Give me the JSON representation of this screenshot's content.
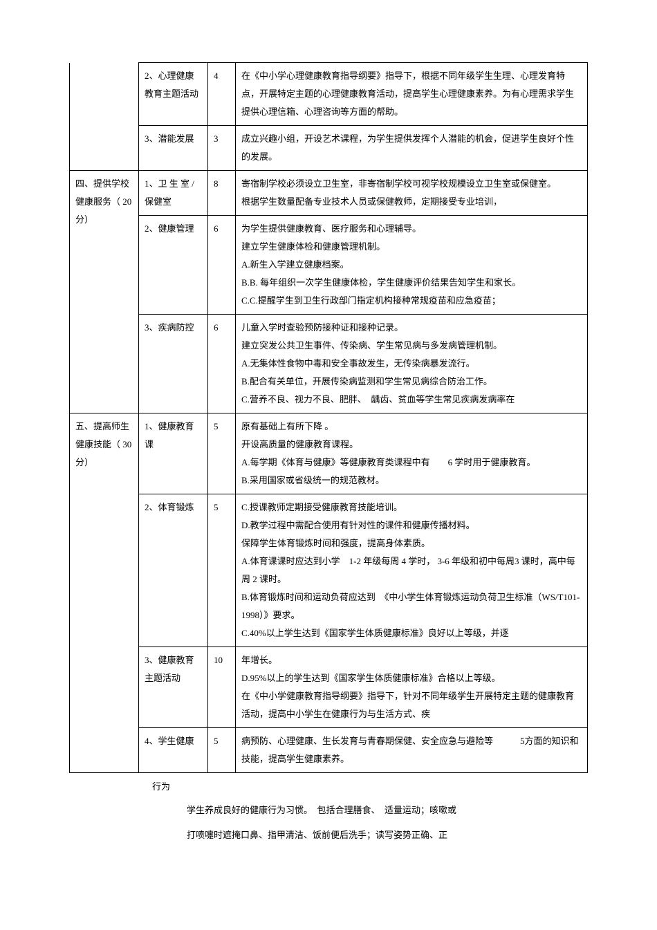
{
  "table": {
    "col_widths": [
      "100px",
      "100px",
      "40px",
      "auto"
    ],
    "border_color": "#000000",
    "font_size": 13,
    "rows": [
      {
        "c1": "",
        "c1_rowspan": 2,
        "c1_border_top": false,
        "c2": "2、心理健康教育主题活动",
        "c3": "4",
        "c4": "在《中小学心理健康教育指导纲要》指导下，根据不同年级学生生理、心理发育特点，开展特定主题的心理健康教育活动，提高学生心理健康素养。为有心理需求学生提供心理信箱、心理咨询等方面的帮助。"
      },
      {
        "c2": "3、潜能发展",
        "c3": "3",
        "c4": "成立兴趣小组，开设艺术课程，为学生提供发挥个人潜能的机会，促进学生良好个性的发展。"
      },
      {
        "c1": "四、提供学校健康服务（ 20分）",
        "c1_rowspan": 3,
        "c2": "1、卫 生 室 / 保健室",
        "c3": "8",
        "c4": "寄宿制学校必须设立卫生室，非寄宿制学校可视学校规模设立卫生室或保健室。\n根据学生数量配备专业技术人员或保健教师，定期接受专业培训，"
      },
      {
        "c2": "2、健康管理",
        "c3": "6",
        "c4": "为学生提供健康教育、医疗服务和心理辅导。\n建立学生健康体检和健康管理机制。\nA.新生入学建立健康档案。\nB.B. 每年组织一次学生健康体检，学生健康评价结果告知学生和家长。\nC.C.提醒学生到卫生行政部门指定机构接种常规疫苗和应急疫苗；"
      },
      {
        "c2": "3、疾病防控",
        "c3": "6",
        "c4": "儿童入学时查验预防接种证和接种记录。\n建立突发公共卫生事件、传染病、学生常见病与多发病管理机制。\nA.无集体性食物中毒和安全事故发生，无传染病暴发流行。\nB.配合有关单位，开展传染病监测和学生常见病综合防治工作。\nC.营养不良、视力不良、肥胖、　龋齿、贫血等学生常见疾病发病率在"
      },
      {
        "c1": "五、提高师生健康技能（ 30分）",
        "c1_rowspan": 4,
        "c2": "1、健康教育课",
        "c3": "5",
        "c4": "原有基础上有所下降 。\n开设高质量的健康教育课程。\nA.每学期《体育与健康》等健康教育类课程中有　　6 学时用于健康教育。\nB.采用国家或省级统一的规范教材。"
      },
      {
        "c2": "2、体育锻炼",
        "c3": "5",
        "c4": "C.授课教师定期接受健康教育技能培训。\nD.教学过程中需配合使用有针对性的课件和健康传播材料。\n保障学生体育锻炼时间和强度，提高身体素质。\nA.体育课课时应达到小学　1-2 年级每周 4 学时， 3-6 年级和初中每周3 课时，高中每周  2 课时。\nB.体育锻炼时间和运动负荷应达到　《中小学生体育锻炼运动负荷卫生标准（WS/T101-1998）》要求。\nC.40%以上学生达到《国家学生体质健康标准》良好以上等级，并逐"
      },
      {
        "c2": "3、健康教育主题活动",
        "c3": "10",
        "c4": "年增长。\nD.95%以上的学生达到《国家学生体质健康标准》合格以上等级。\n在《中小学健康教育指导纲要》指导下，针对不同年级学生开展特定主题的健康教育活动，提高中小学生在健康行为与生活方式、疾"
      },
      {
        "c2": "4、学生健康",
        "c3": "5",
        "c4": "病预防、心理健康、生长发育与青春期保健、安全应急与避险等　　　5方面的知识和技能，提高学生健康素养。"
      }
    ]
  },
  "footnote": {
    "label": "行为",
    "text1": "学生养成良好的健康行为习惯。　包括合理膳食、　适量运动；咳嗽或",
    "text2": "打喷嚏时遮掩口鼻、指甲清洁、饭前便后洗手；读写姿势正确、正"
  }
}
